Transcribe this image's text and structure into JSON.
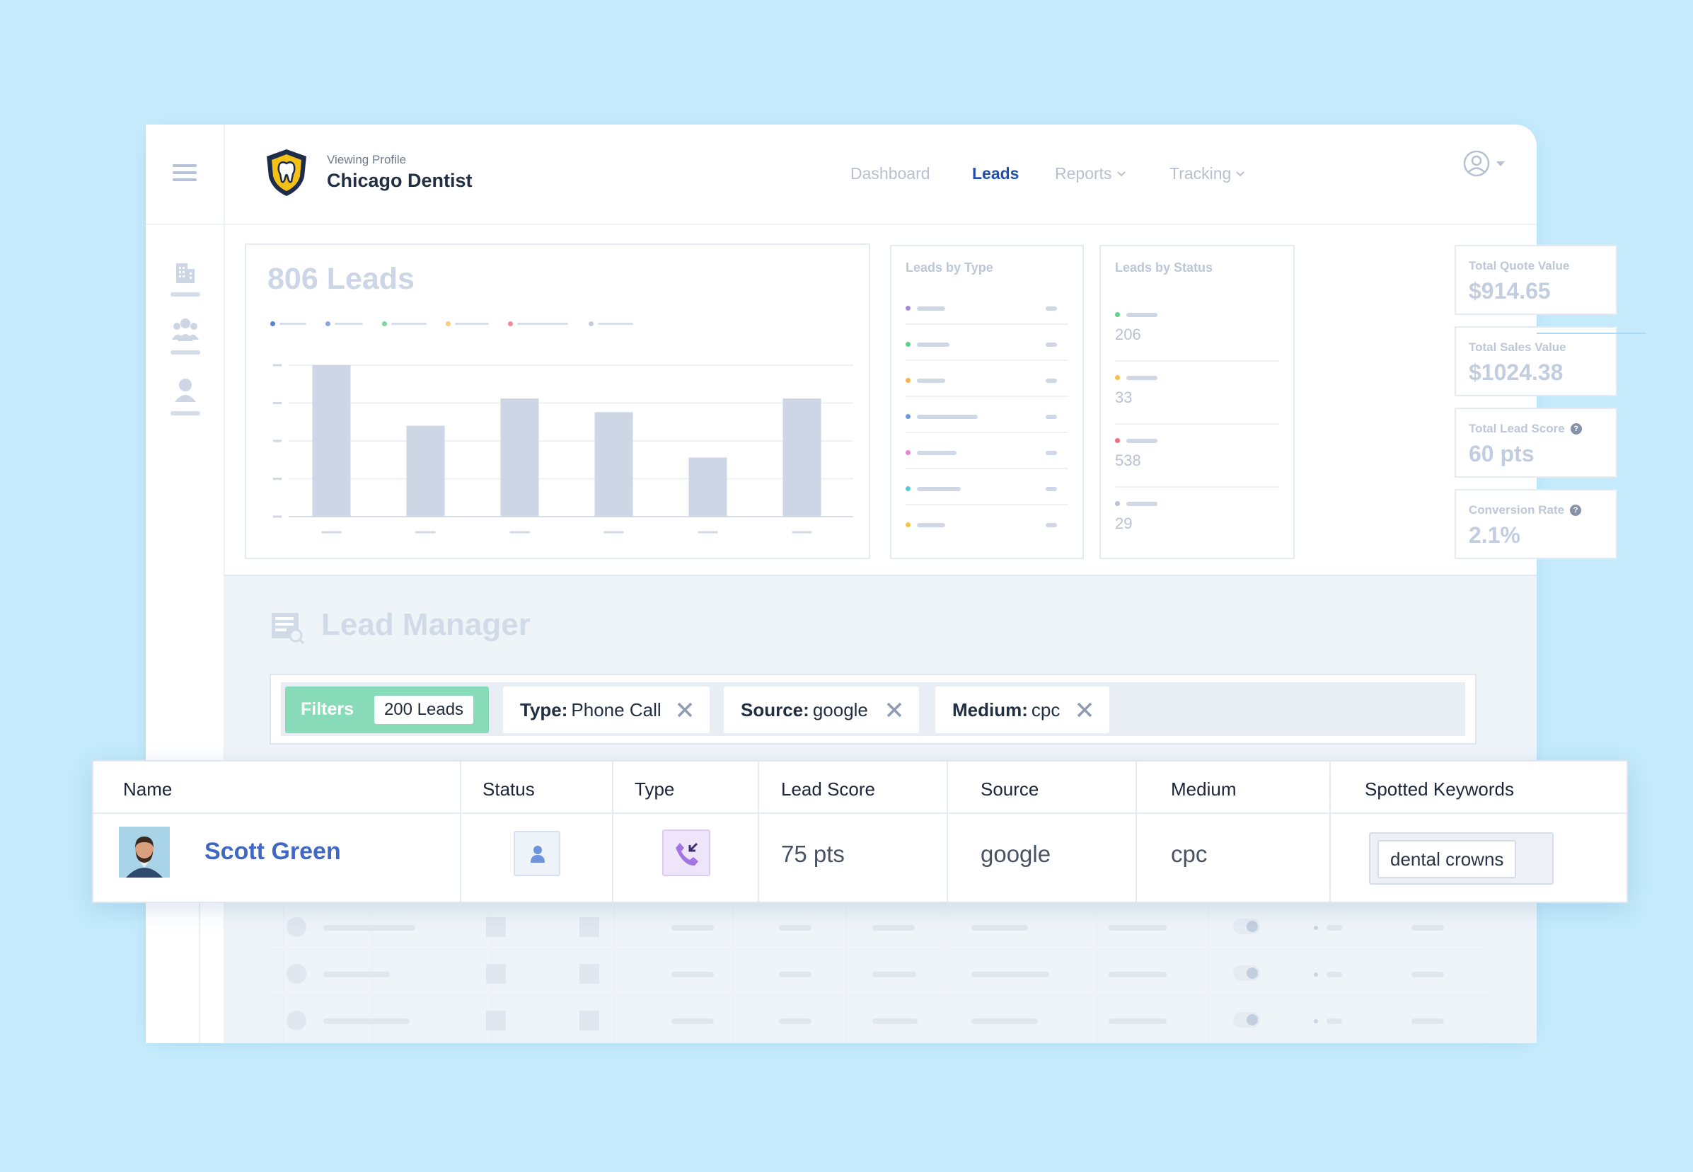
{
  "header": {
    "viewing_label": "Viewing Profile",
    "profile_name": "Chicago Dentist",
    "nav": [
      {
        "label": "Dashboard"
      },
      {
        "label": "Leads"
      },
      {
        "label": "Reports"
      },
      {
        "label": "Tracking"
      }
    ]
  },
  "leads_chart": {
    "title": "806 Leads"
  },
  "chart_data": {
    "type": "bar",
    "categories": [
      "",
      "",
      "",
      "",
      "",
      ""
    ],
    "values": [
      100,
      60,
      78,
      69,
      39,
      78
    ],
    "title": "806 Leads",
    "xlabel": "",
    "ylabel": "",
    "ylim": [
      0,
      100
    ],
    "grid": true
  },
  "leads_by_type": {
    "title": "Leads by Type",
    "colors": [
      "#a98bd6",
      "#5fcf8a",
      "#f5b358",
      "#6f98de",
      "#e58ad2",
      "#58c8d6",
      "#f2c34e"
    ]
  },
  "leads_by_status": {
    "title": "Leads by Status",
    "rows": [
      {
        "value": "206",
        "color": "#5fcf8a"
      },
      {
        "value": "33",
        "color": "#f5c04e"
      },
      {
        "value": "538",
        "color": "#ef6a7a"
      },
      {
        "value": "29",
        "color": "#b9c2d0"
      }
    ]
  },
  "stats": [
    {
      "label": "Total Quote Value",
      "value": "$914.65"
    },
    {
      "label": "Total Sales Value",
      "value": "$1024.38"
    },
    {
      "label": "Total Lead Score",
      "value": "60 pts",
      "help": "?"
    },
    {
      "label": "Conversion Rate",
      "value": "2.1%",
      "help": "?"
    }
  ],
  "lead_manager": {
    "title": "Lead Manager",
    "filters_label": "Filters",
    "count_label": "200 Leads",
    "chips": [
      {
        "key": "Type:",
        "value": "Phone Call"
      },
      {
        "key": "Source:",
        "value": "google"
      },
      {
        "key": "Medium:",
        "value": "cpc"
      }
    ]
  },
  "table": {
    "columns": [
      "Name",
      "Status",
      "Type",
      "Lead Score",
      "Source",
      "Medium",
      "Spotted Keywords"
    ],
    "row": {
      "name": "Scott Green",
      "lead_score": "75 pts",
      "source": "google",
      "medium": "cpc",
      "keyword": "dental crowns"
    }
  },
  "colors": {
    "background": "#c4eafc",
    "accent_blue": "#1f4fb3",
    "filters_green": "#88dbb8",
    "name_link": "#3f67c4"
  }
}
